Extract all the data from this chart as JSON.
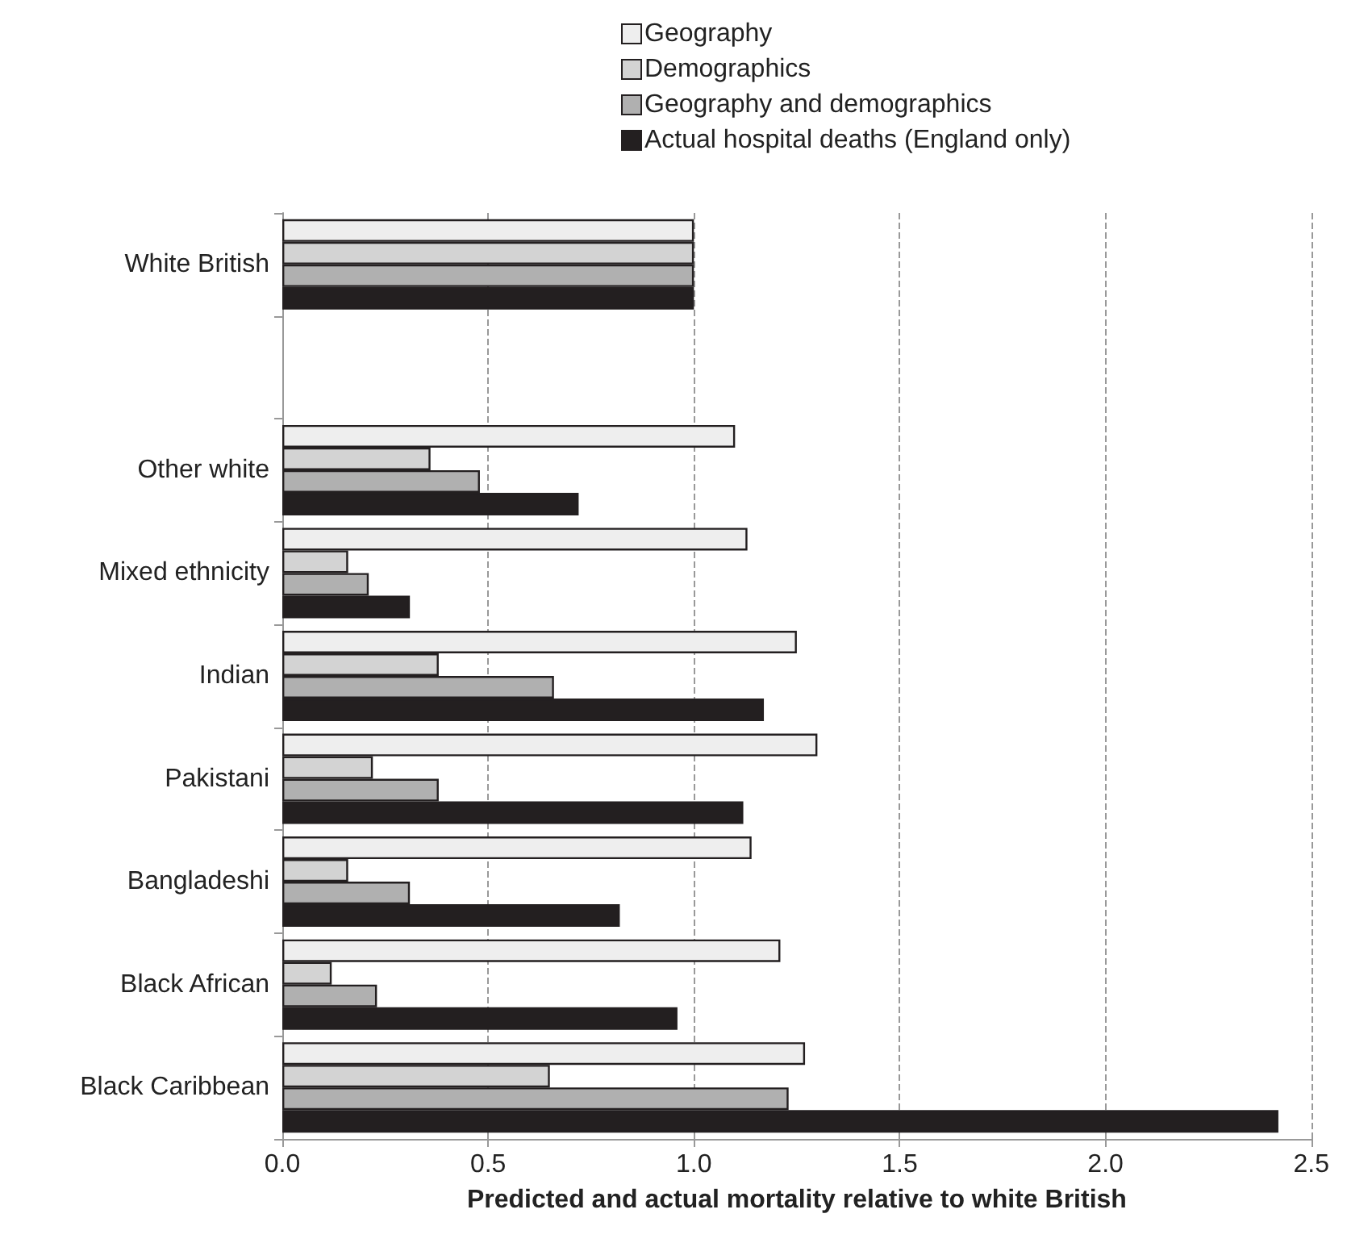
{
  "chart_data": {
    "type": "bar",
    "orientation": "horizontal",
    "xlabel": "Predicted and actual mortality relative to white British",
    "categories": [
      "White British",
      null,
      "Other white",
      "Mixed ethnicity",
      "Indian",
      "Pakistani",
      "Bangladeshi",
      "Black African",
      "Black Caribbean"
    ],
    "series": [
      {
        "name": "Geography",
        "color": "#eeeeee",
        "values": [
          1.0,
          null,
          1.1,
          1.13,
          1.25,
          1.3,
          1.14,
          1.21,
          1.27
        ]
      },
      {
        "name": "Demographics",
        "color": "#d3d3d3",
        "values": [
          1.0,
          null,
          0.36,
          0.16,
          0.38,
          0.22,
          0.16,
          0.12,
          0.65
        ]
      },
      {
        "name": "Geography and demographics",
        "color": "#b0b0b0",
        "values": [
          1.0,
          null,
          0.48,
          0.21,
          0.66,
          0.38,
          0.31,
          0.23,
          1.23
        ]
      },
      {
        "name": "Actual hospital deaths (England only)",
        "color": "#231f20",
        "values": [
          1.0,
          null,
          0.72,
          0.31,
          1.17,
          1.12,
          0.82,
          0.96,
          2.42
        ]
      }
    ],
    "xlim": [
      0,
      2.5
    ],
    "xticks": [
      {
        "value": 0,
        "label": "0.0"
      },
      0.5,
      {
        "value": 1,
        "label": "1.0"
      },
      1.5,
      {
        "value": 2,
        "label": "2.0"
      },
      2.5
    ],
    "grid": "x",
    "legend": "top"
  }
}
